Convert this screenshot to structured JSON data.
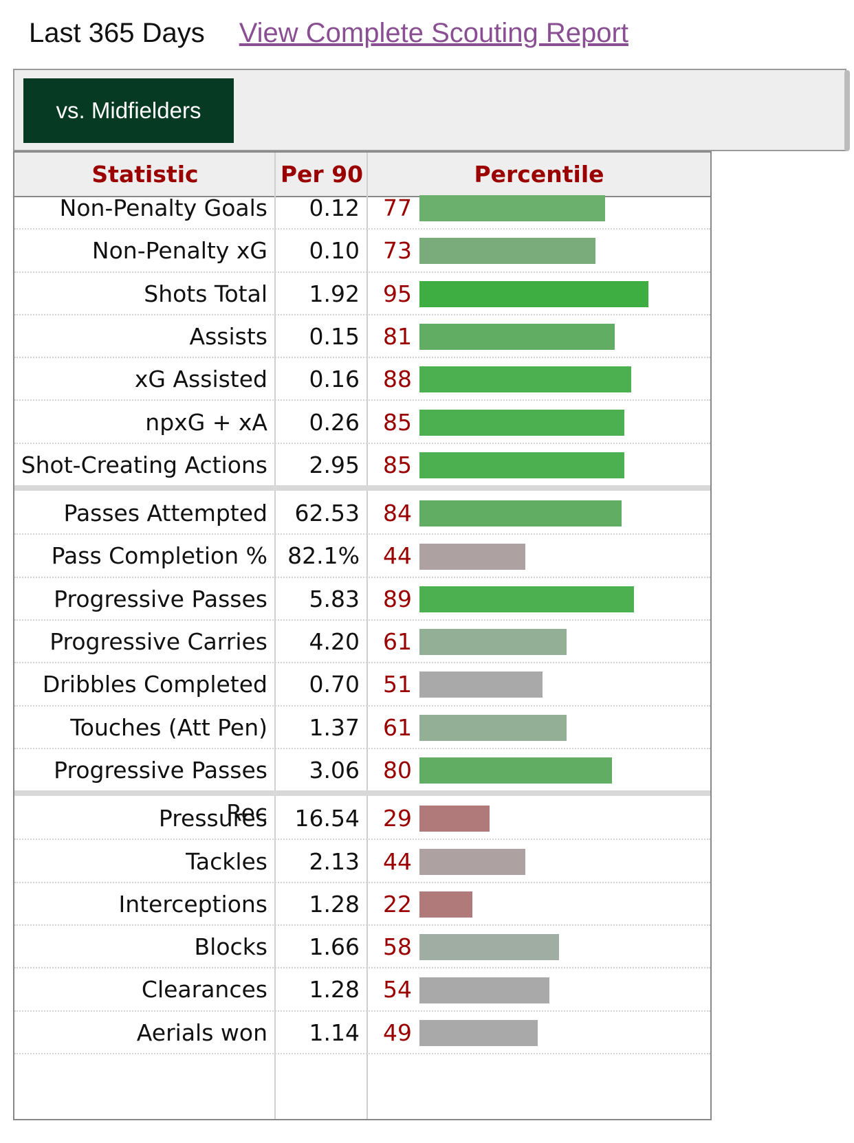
{
  "header": {
    "period": "Last 365 Days",
    "report_link": "View Complete Scouting Report"
  },
  "filter": {
    "active_tab": "vs. Midfielders"
  },
  "table": {
    "headers": {
      "statistic": "Statistic",
      "per90": "Per 90",
      "percentile": "Percentile"
    },
    "groups": [
      [
        {
          "stat": "Non-Penalty Goals",
          "per90": "0.12",
          "percentile": 77
        },
        {
          "stat": "Non-Penalty xG",
          "per90": "0.10",
          "percentile": 73
        },
        {
          "stat": "Shots Total",
          "per90": "1.92",
          "percentile": 95
        },
        {
          "stat": "Assists",
          "per90": "0.15",
          "percentile": 81
        },
        {
          "stat": "xG Assisted",
          "per90": "0.16",
          "percentile": 88
        },
        {
          "stat": "npxG + xA",
          "per90": "0.26",
          "percentile": 85
        },
        {
          "stat": "Shot-Creating Actions",
          "per90": "2.95",
          "percentile": 85
        }
      ],
      [
        {
          "stat": "Passes Attempted",
          "per90": "62.53",
          "percentile": 84
        },
        {
          "stat": "Pass Completion %",
          "per90": "82.1%",
          "percentile": 44
        },
        {
          "stat": "Progressive Passes",
          "per90": "5.83",
          "percentile": 89
        },
        {
          "stat": "Progressive Carries",
          "per90": "4.20",
          "percentile": 61
        },
        {
          "stat": "Dribbles Completed",
          "per90": "0.70",
          "percentile": 51
        },
        {
          "stat": "Touches (Att Pen)",
          "per90": "1.37",
          "percentile": 61
        },
        {
          "stat": "Progressive Passes Rec",
          "per90": "3.06",
          "percentile": 80
        }
      ],
      [
        {
          "stat": "Pressures",
          "per90": "16.54",
          "percentile": 29
        },
        {
          "stat": "Tackles",
          "per90": "2.13",
          "percentile": 44
        },
        {
          "stat": "Interceptions",
          "per90": "1.28",
          "percentile": 22
        },
        {
          "stat": "Blocks",
          "per90": "1.66",
          "percentile": 58
        },
        {
          "stat": "Clearances",
          "per90": "1.28",
          "percentile": 54
        },
        {
          "stat": "Aerials won",
          "per90": "1.14",
          "percentile": 49
        }
      ]
    ]
  },
  "colors": {
    "header_text": "#9b0000",
    "tab_bg": "#063a22",
    "link": "#8a4f93"
  }
}
